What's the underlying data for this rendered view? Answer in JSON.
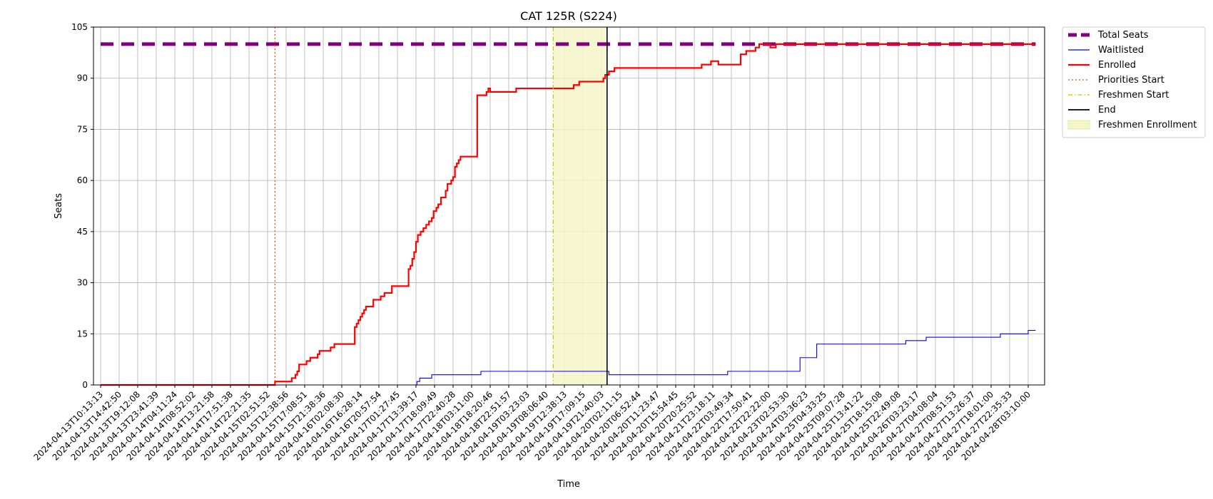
{
  "chart_data": {
    "type": "line",
    "title": "CAT 125R (S224)",
    "xlabel": "Time",
    "ylabel": "Seats",
    "ylim": [
      0,
      105
    ],
    "yticks": [
      0,
      15,
      30,
      45,
      60,
      75,
      90,
      105
    ],
    "xlim": [
      "2024-04-13T10:13:13",
      "2024-04-28T11:00:00"
    ],
    "grid": true,
    "legend_position": "outside top-right",
    "xtick_labels": [
      "2024-04-13T10:13:13",
      "2024-04-13T14:42:50",
      "2024-04-13T19:12:08",
      "2024-04-13T23:41:39",
      "2024-04-14T04:11:24",
      "2024-04-14T08:52:02",
      "2024-04-14T13:21:58",
      "2024-04-14T17:51:38",
      "2024-04-14T22:21:35",
      "2024-04-15T02:51:52",
      "2024-04-15T12:38:56",
      "2024-04-15T17:08:51",
      "2024-04-15T21:38:36",
      "2024-04-16T02:08:30",
      "2024-04-16T16:28:14",
      "2024-04-16T20:57:54",
      "2024-04-17T01:27:45",
      "2024-04-17T13:39:17",
      "2024-04-17T18:09:49",
      "2024-04-17T22:40:28",
      "2024-04-18T03:11:00",
      "2024-04-18T18:20:46",
      "2024-04-18T22:51:57",
      "2024-04-19T03:23:03",
      "2024-04-19T08:06:40",
      "2024-04-19T12:38:13",
      "2024-04-19T17:09:15",
      "2024-04-19T21:40:03",
      "2024-04-20T02:11:15",
      "2024-04-20T06:52:44",
      "2024-04-20T11:23:47",
      "2024-04-20T15:54:45",
      "2024-04-20T20:25:52",
      "2024-04-21T23:18:11",
      "2024-04-22T03:49:34",
      "2024-04-22T17:50:41",
      "2024-04-22T22:22:00",
      "2024-04-23T02:53:30",
      "2024-04-24T03:36:23",
      "2024-04-25T04:33:25",
      "2024-04-25T09:07:28",
      "2024-04-25T13:41:22",
      "2024-04-25T18:15:08",
      "2024-04-25T22:49:08",
      "2024-04-26T03:23:17",
      "2024-04-27T04:08:04",
      "2024-04-27T08:51:53",
      "2024-04-27T13:26:37",
      "2024-04-27T18:01:00",
      "2024-04-27T22:35:33",
      "2024-04-28T03:10:00"
    ],
    "series": [
      {
        "name": "Total Seats",
        "style": "dashed-thick",
        "color": "#800080",
        "points": [
          [
            0,
            100
          ],
          [
            50.4,
            100
          ]
        ]
      },
      {
        "name": "Waitlisted",
        "style": "step",
        "color": "#0000ff",
        "points": [
          [
            0,
            0
          ],
          [
            17.0,
            0
          ],
          [
            17.05,
            1
          ],
          [
            17.2,
            2
          ],
          [
            17.8,
            2
          ],
          [
            17.85,
            3
          ],
          [
            18.0,
            3
          ],
          [
            20.4,
            3
          ],
          [
            20.5,
            4
          ],
          [
            27.3,
            4
          ],
          [
            27.4,
            3
          ],
          [
            33.7,
            3
          ],
          [
            33.8,
            4
          ],
          [
            37.6,
            4
          ],
          [
            37.7,
            8
          ],
          [
            38.5,
            8
          ],
          [
            38.6,
            12
          ],
          [
            43.3,
            12
          ],
          [
            43.4,
            13
          ],
          [
            44.4,
            13
          ],
          [
            44.5,
            14
          ],
          [
            48.4,
            14
          ],
          [
            48.5,
            15
          ],
          [
            49.9,
            15
          ],
          [
            50.0,
            16
          ],
          [
            50.4,
            16
          ]
        ]
      },
      {
        "name": "Enrolled",
        "style": "step",
        "color": "#ff0000",
        "points": [
          [
            0,
            0
          ],
          [
            9.3,
            0
          ],
          [
            9.4,
            1
          ],
          [
            10.2,
            1
          ],
          [
            10.3,
            2
          ],
          [
            10.5,
            3
          ],
          [
            10.6,
            4
          ],
          [
            10.7,
            6
          ],
          [
            11.0,
            6
          ],
          [
            11.1,
            7
          ],
          [
            11.3,
            8
          ],
          [
            11.7,
            9
          ],
          [
            11.8,
            10
          ],
          [
            12.3,
            10
          ],
          [
            12.4,
            11
          ],
          [
            12.6,
            12
          ],
          [
            13.6,
            12
          ],
          [
            13.7,
            17
          ],
          [
            13.8,
            18
          ],
          [
            13.9,
            19
          ],
          [
            14.0,
            20
          ],
          [
            14.1,
            21
          ],
          [
            14.2,
            22
          ],
          [
            14.3,
            23
          ],
          [
            14.6,
            23
          ],
          [
            14.7,
            25
          ],
          [
            15.0,
            25
          ],
          [
            15.1,
            26
          ],
          [
            15.3,
            27
          ],
          [
            15.6,
            27
          ],
          [
            15.7,
            29
          ],
          [
            16.5,
            29
          ],
          [
            16.6,
            34
          ],
          [
            16.7,
            35
          ],
          [
            16.8,
            37
          ],
          [
            16.9,
            39
          ],
          [
            17.0,
            42
          ],
          [
            17.1,
            44
          ],
          [
            17.25,
            45
          ],
          [
            17.4,
            46
          ],
          [
            17.55,
            47
          ],
          [
            17.7,
            48
          ],
          [
            17.85,
            49
          ],
          [
            17.95,
            51
          ],
          [
            18.1,
            52
          ],
          [
            18.2,
            53
          ],
          [
            18.35,
            55
          ],
          [
            18.5,
            55
          ],
          [
            18.6,
            57
          ],
          [
            18.7,
            59
          ],
          [
            18.85,
            59
          ],
          [
            18.9,
            60
          ],
          [
            19.0,
            61
          ],
          [
            19.1,
            64
          ],
          [
            19.2,
            65
          ],
          [
            19.3,
            66
          ],
          [
            19.4,
            67
          ],
          [
            20.2,
            67
          ],
          [
            20.3,
            85
          ],
          [
            20.7,
            85
          ],
          [
            20.8,
            86
          ],
          [
            20.9,
            87
          ],
          [
            21.0,
            86
          ],
          [
            22.3,
            86
          ],
          [
            22.4,
            87
          ],
          [
            25.3,
            87
          ],
          [
            25.5,
            88
          ],
          [
            25.7,
            88
          ],
          [
            25.8,
            89
          ],
          [
            27.0,
            89
          ],
          [
            27.1,
            90
          ],
          [
            27.2,
            91
          ],
          [
            27.4,
            92
          ],
          [
            27.6,
            92
          ],
          [
            27.7,
            93
          ],
          [
            32.3,
            93
          ],
          [
            32.4,
            94
          ],
          [
            32.8,
            94
          ],
          [
            32.9,
            95
          ],
          [
            33.2,
            95
          ],
          [
            33.3,
            94
          ],
          [
            34.4,
            94
          ],
          [
            34.5,
            97
          ],
          [
            34.7,
            97
          ],
          [
            34.8,
            98
          ],
          [
            35.2,
            98
          ],
          [
            35.3,
            99
          ],
          [
            35.5,
            100
          ],
          [
            36.0,
            100
          ],
          [
            36.1,
            99
          ],
          [
            36.3,
            99
          ],
          [
            36.4,
            100
          ],
          [
            50.4,
            100
          ]
        ]
      }
    ],
    "markers": [
      {
        "name": "Priorities Start",
        "style": "dotted",
        "color": "#ff4500",
        "x": 9.4
      },
      {
        "name": "Freshmen Start",
        "style": "dashdot",
        "color": "#c8c800",
        "x": 24.4
      },
      {
        "name": "End",
        "style": "solid",
        "color": "#000000",
        "x": 27.3
      }
    ],
    "spans": [
      {
        "name": "Freshmen Enrollment",
        "color": "#f5f5c8",
        "x_start": 24.4,
        "x_end": 27.3
      }
    ],
    "legend": [
      {
        "label": "Total Seats",
        "kind": "dashed-thick",
        "color": "#800080"
      },
      {
        "label": "Waitlisted",
        "kind": "line-thin",
        "color": "#0000ff"
      },
      {
        "label": "Enrolled",
        "kind": "line-thick",
        "color": "#ff0000"
      },
      {
        "label": "Priorities Start",
        "kind": "dotted",
        "color": "#ff4500"
      },
      {
        "label": "Freshmen Start",
        "kind": "dashdot",
        "color": "#c8c800"
      },
      {
        "label": "End",
        "kind": "solid",
        "color": "#000000"
      },
      {
        "label": "Freshmen Enrollment",
        "kind": "patch",
        "color": "#f5f5c8"
      }
    ]
  }
}
